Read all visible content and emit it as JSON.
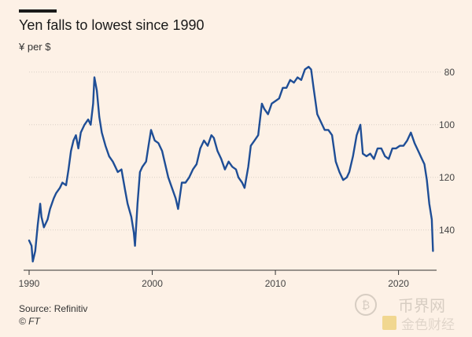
{
  "header": {
    "title": "Yen falls to lowest since 1990",
    "subtitle": "¥ per $"
  },
  "footer": {
    "source": "Source: Refinitiv",
    "credit": "© FT"
  },
  "watermark": {
    "text_cn": "币界网",
    "text_cn2": "金色财经"
  },
  "colors": {
    "background": "#fdf1e6",
    "line": "#1f4e96",
    "grid": "#d8cfc6",
    "tick_text": "#444444"
  },
  "chart_data": {
    "type": "line",
    "title": "Yen falls to lowest since 1990",
    "ylabel": "¥ per $",
    "xlabel": "",
    "y_axis": {
      "inverted": true,
      "position": "right",
      "ticks": [
        80,
        100,
        120,
        140
      ],
      "range": [
        75,
        155
      ]
    },
    "x_axis": {
      "ticks": [
        1990,
        2000,
        2010,
        2020
      ],
      "range": [
        1990,
        2022.9
      ]
    },
    "grid": {
      "horizontal": true,
      "vertical": false
    },
    "series": [
      {
        "x": [
          1990.0,
          1990.2,
          1990.3,
          1990.5,
          1990.7,
          1990.9,
          1991.0,
          1991.2,
          1991.5,
          1991.7,
          1992.0,
          1992.2,
          1992.5,
          1992.7,
          1993.0,
          1993.2,
          1993.4,
          1993.6,
          1993.8,
          1994.0,
          1994.2,
          1994.5,
          1994.8,
          1995.0,
          1995.2,
          1995.3,
          1995.5,
          1995.7,
          1995.9,
          1996.2,
          1996.5,
          1996.8,
          1997.0,
          1997.2,
          1997.5,
          1997.8,
          1998.0,
          1998.3,
          1998.5,
          1998.6,
          1998.8,
          1999.0,
          1999.2,
          1999.5,
          1999.7,
          1999.9,
          2000.2,
          2000.5,
          2000.8,
          2001.0,
          2001.3,
          2001.6,
          2001.9,
          2002.1,
          2002.4,
          2002.7,
          2003.0,
          2003.3,
          2003.6,
          2003.9,
          2004.2,
          2004.5,
          2004.8,
          2005.0,
          2005.3,
          2005.6,
          2005.9,
          2006.2,
          2006.5,
          2006.8,
          2007.0,
          2007.3,
          2007.5,
          2007.8,
          2008.0,
          2008.3,
          2008.6,
          2008.9,
          2009.1,
          2009.4,
          2009.7,
          2010.0,
          2010.3,
          2010.6,
          2010.9,
          2011.2,
          2011.5,
          2011.8,
          2012.1,
          2012.4,
          2012.7,
          2012.9,
          2013.1,
          2013.4,
          2013.7,
          2014.0,
          2014.3,
          2014.6,
          2014.9,
          2015.2,
          2015.5,
          2015.8,
          2016.0,
          2016.3,
          2016.6,
          2016.9,
          2017.1,
          2017.4,
          2017.7,
          2018.0,
          2018.3,
          2018.6,
          2018.9,
          2019.2,
          2019.5,
          2019.8,
          2020.1,
          2020.4,
          2020.7,
          2021.0,
          2021.3,
          2021.6,
          2021.9,
          2022.1,
          2022.3,
          2022.5,
          2022.7,
          2022.8
        ],
        "values": [
          144,
          146,
          152,
          148,
          138,
          130,
          135,
          139,
          136,
          132,
          128,
          126,
          124,
          122,
          123,
          117,
          110,
          106,
          104,
          109,
          103,
          100,
          98,
          100,
          92,
          82,
          87,
          97,
          103,
          108,
          112,
          114,
          116,
          118,
          117,
          125,
          130,
          135,
          141,
          146,
          130,
          118,
          116,
          114,
          108,
          102,
          106,
          107,
          110,
          114,
          120,
          124,
          128,
          132,
          122,
          122,
          120,
          117,
          115,
          109,
          106,
          108,
          104,
          105,
          110,
          113,
          117,
          114,
          116,
          117,
          120,
          122,
          124,
          116,
          108,
          106,
          104,
          92,
          94,
          96,
          92,
          91,
          90,
          86,
          86,
          83,
          84,
          82,
          83,
          79,
          78,
          79,
          86,
          96,
          99,
          102,
          102,
          104,
          114,
          118,
          121,
          120,
          118,
          112,
          104,
          100,
          111,
          112,
          111,
          113,
          109,
          109,
          112,
          113,
          109,
          109,
          108,
          108,
          106,
          103,
          107,
          110,
          113,
          115,
          121,
          130,
          136,
          148
        ]
      }
    ]
  }
}
